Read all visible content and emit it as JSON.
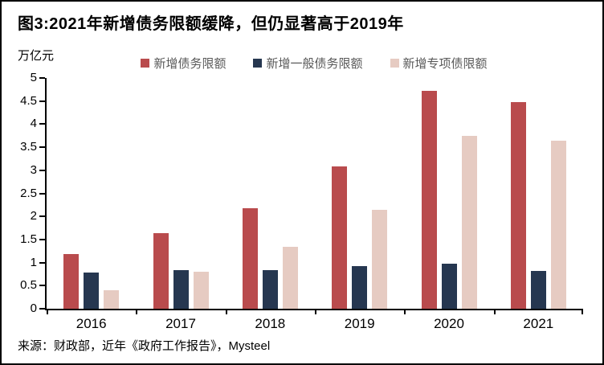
{
  "title": "图3:2021年新增债务限额缓降，但仍显著高于2019年",
  "unit_label": "万亿元",
  "source": "来源：财政部，近年《政府工作报告》，Mysteel",
  "colors": {
    "series_red": "#B94B4D",
    "series_navy": "#263750",
    "series_pink": "#E6CBC2",
    "axis": "#000000",
    "legend_text": "#595959"
  },
  "chart_data": {
    "type": "bar",
    "title": "图3:2021年新增债务限额缓降，但仍显著高于2019年",
    "xlabel": "",
    "ylabel": "万亿元",
    "categories": [
      "2016",
      "2017",
      "2018",
      "2019",
      "2020",
      "2021"
    ],
    "series": [
      {
        "name": "新增债务限额",
        "color": "#B94B4D",
        "values": [
          1.18,
          1.63,
          2.18,
          3.08,
          4.73,
          4.47
        ]
      },
      {
        "name": "新增一般债务限额",
        "color": "#263750",
        "values": [
          0.78,
          0.83,
          0.83,
          0.93,
          0.98,
          0.82
        ]
      },
      {
        "name": "新增专项债限额",
        "color": "#E6CBC2",
        "values": [
          0.4,
          0.8,
          1.35,
          2.15,
          3.75,
          3.65
        ]
      }
    ],
    "ylim": [
      0,
      5
    ],
    "ytick_step": 0.5,
    "grid": false,
    "legend_position": "top"
  }
}
